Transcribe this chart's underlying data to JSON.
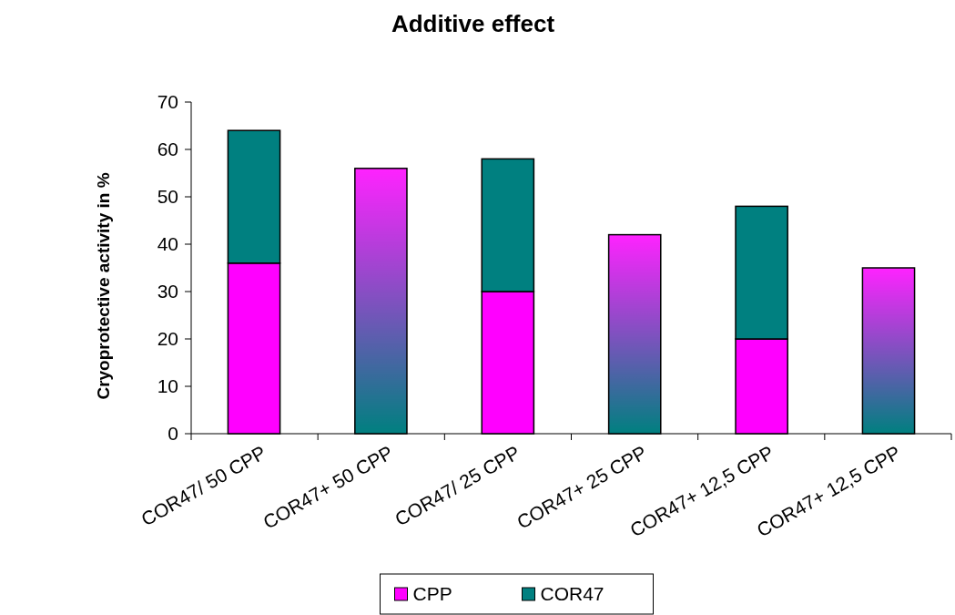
{
  "chart_data": {
    "type": "bar",
    "title": "Additive effect",
    "ylabel": "Cryoprotective activity in %",
    "categories": [
      "COR47/ 50 CPP",
      "COR47+ 50 CPP",
      "COR47/ 25 CPP",
      "COR47+ 25 CPP",
      "COR47+ 12,5 CPP",
      "COR47+ 12,5 CPP"
    ],
    "stacked": true,
    "series": [
      {
        "name": "CPP",
        "color": "#ff00ff",
        "values": [
          36,
          null,
          30,
          null,
          20,
          null
        ]
      },
      {
        "name": "COR47",
        "color": "#008080",
        "values": [
          28,
          null,
          28,
          null,
          28,
          null
        ]
      },
      {
        "color": "#ff22ff",
        "values": [
          null,
          56,
          null,
          42,
          null,
          35
        ]
      }
    ],
    "ylim": [
      0,
      70
    ],
    "yticks": [
      0,
      10,
      20,
      30,
      40,
      50,
      60,
      70
    ],
    "grid": false,
    "legend": "bottom"
  }
}
